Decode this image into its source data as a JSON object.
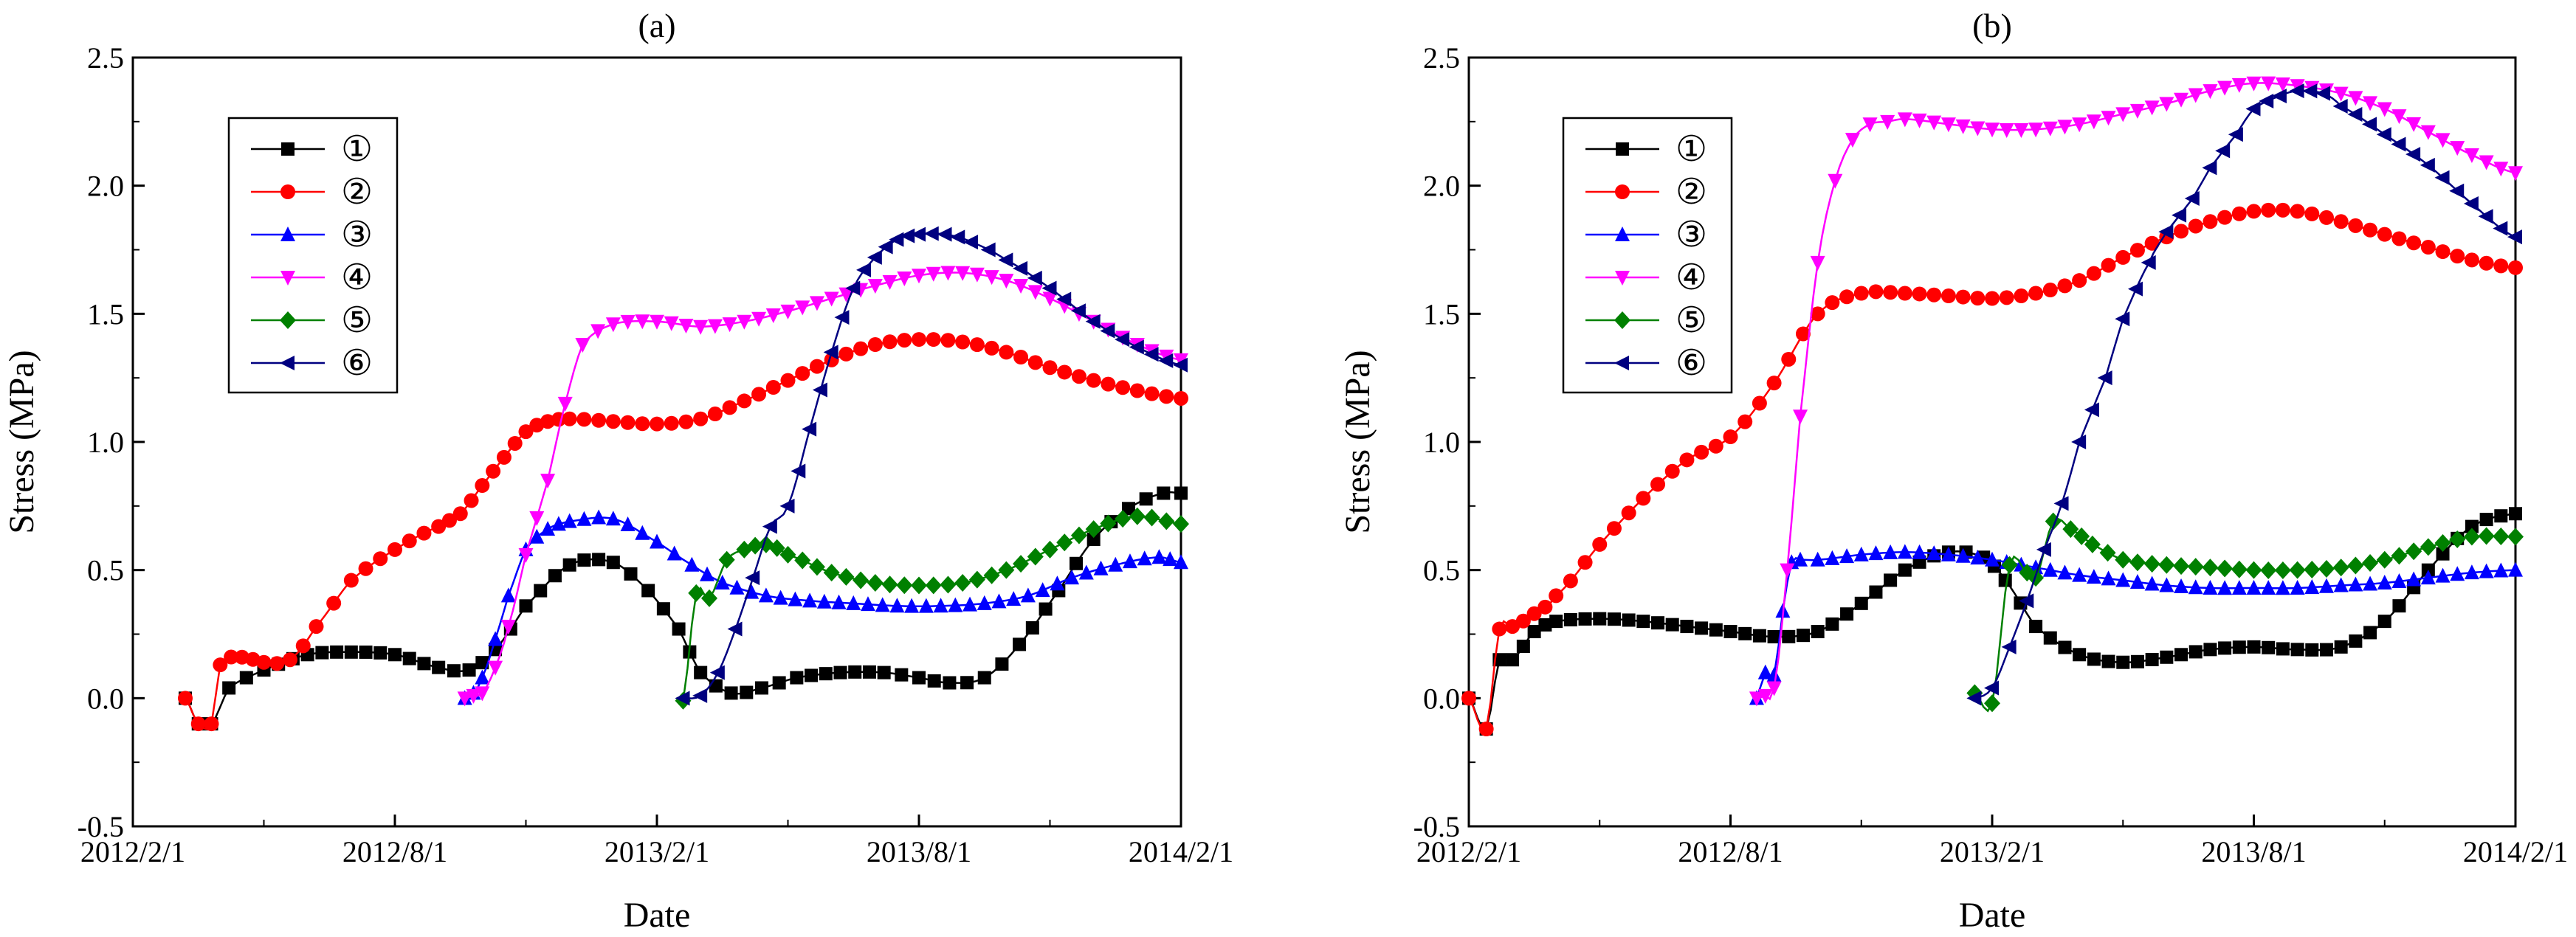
{
  "chart_data": [
    {
      "type": "line",
      "title": "(a)",
      "xlabel": "Date",
      "ylabel": "Stress (MPa)",
      "x_range": [
        0,
        24
      ],
      "x_unit": "months since 2012/2/1",
      "x_ticks": [
        {
          "value": 0,
          "label": "2012/2/1"
        },
        {
          "value": 6,
          "label": "2012/8/1"
        },
        {
          "value": 12,
          "label": "2013/2/1"
        },
        {
          "value": 18,
          "label": "2013/8/1"
        },
        {
          "value": 24,
          "label": "2014/2/1"
        }
      ],
      "ylim": [
        -0.5,
        2.5
      ],
      "y_ticks": [
        {
          "value": -0.5,
          "label": "-0.5"
        },
        {
          "value": 0.0,
          "label": "0.0"
        },
        {
          "value": 0.5,
          "label": "0.5"
        },
        {
          "value": 1.0,
          "label": "1.0"
        },
        {
          "value": 1.5,
          "label": "1.5"
        },
        {
          "value": 2.0,
          "label": "2.0"
        },
        {
          "value": 2.5,
          "label": "2.5"
        }
      ],
      "legend_position": "top-left",
      "series": [
        {
          "name": "①",
          "color": "#000000",
          "marker": "square",
          "x": [
            1.2,
            1.5,
            1.8,
            2.2,
            3.0,
            4.0,
            5.0,
            6.0,
            7.0,
            7.7,
            8.3,
            9.0,
            10.0,
            11.0,
            11.8,
            12.5,
            13.0,
            13.7,
            14.4,
            15.2,
            16.2,
            17.2,
            18.0,
            18.7,
            19.5,
            20.3,
            21.2,
            22.0,
            22.8,
            23.6,
            24.0
          ],
          "values": [
            0.0,
            -0.1,
            -0.1,
            0.04,
            0.11,
            0.17,
            0.18,
            0.17,
            0.12,
            0.11,
            0.19,
            0.36,
            0.52,
            0.53,
            0.42,
            0.27,
            0.1,
            0.02,
            0.04,
            0.08,
            0.1,
            0.1,
            0.08,
            0.06,
            0.08,
            0.21,
            0.42,
            0.62,
            0.74,
            0.8,
            0.8
          ]
        },
        {
          "name": "②",
          "color": "#ff0000",
          "marker": "circle",
          "x": [
            1.2,
            1.5,
            1.8,
            2.0,
            2.5,
            3.0,
            3.6,
            4.2,
            5.0,
            6.0,
            7.0,
            7.5,
            8.0,
            8.5,
            9.0,
            9.5,
            10.0,
            11.0,
            12.0,
            13.0,
            14.0,
            15.0,
            16.0,
            17.0,
            18.0,
            19.0,
            20.0,
            21.0,
            22.0,
            23.0,
            24.0
          ],
          "values": [
            0.0,
            -0.1,
            -0.1,
            0.13,
            0.16,
            0.14,
            0.15,
            0.28,
            0.46,
            0.58,
            0.67,
            0.72,
            0.83,
            0.94,
            1.04,
            1.08,
            1.09,
            1.08,
            1.07,
            1.09,
            1.16,
            1.24,
            1.32,
            1.38,
            1.4,
            1.39,
            1.35,
            1.29,
            1.24,
            1.2,
            1.17
          ]
        },
        {
          "name": "③",
          "color": "#0000ff",
          "marker": "triangle-up",
          "x": [
            7.6,
            7.8,
            8.0,
            8.3,
            8.6,
            9.0,
            9.5,
            10.0,
            11.0,
            12.0,
            12.8,
            13.5,
            14.5,
            15.5,
            16.5,
            17.5,
            18.5,
            19.5,
            20.5,
            21.5,
            22.5,
            23.5,
            24.0
          ],
          "values": [
            0.0,
            0.02,
            0.08,
            0.23,
            0.4,
            0.58,
            0.66,
            0.69,
            0.7,
            0.61,
            0.52,
            0.45,
            0.4,
            0.38,
            0.37,
            0.36,
            0.36,
            0.37,
            0.4,
            0.47,
            0.52,
            0.55,
            0.53
          ]
        },
        {
          "name": "④",
          "color": "#ff00ff",
          "marker": "triangle-down",
          "x": [
            7.6,
            7.8,
            8.0,
            8.3,
            8.6,
            9.0,
            9.5,
            9.9,
            10.3,
            11.0,
            12.0,
            13.0,
            14.0,
            15.0,
            16.0,
            17.0,
            18.0,
            19.0,
            20.0,
            21.0,
            22.0,
            23.0,
            24.0
          ],
          "values": [
            0.0,
            0.01,
            0.02,
            0.12,
            0.28,
            0.56,
            0.85,
            1.15,
            1.38,
            1.46,
            1.47,
            1.45,
            1.47,
            1.51,
            1.56,
            1.61,
            1.65,
            1.66,
            1.63,
            1.56,
            1.47,
            1.38,
            1.32
          ]
        },
        {
          "name": "⑤",
          "color": "#008000",
          "marker": "diamond",
          "x": [
            12.6,
            12.9,
            13.2,
            13.6,
            14.0,
            14.5,
            15.0,
            16.0,
            17.0,
            18.0,
            19.0,
            20.0,
            21.0,
            22.0,
            23.0,
            24.0
          ],
          "values": [
            -0.01,
            0.41,
            0.39,
            0.54,
            0.58,
            0.6,
            0.56,
            0.49,
            0.45,
            0.44,
            0.45,
            0.5,
            0.58,
            0.66,
            0.71,
            0.68
          ]
        },
        {
          "name": "⑥",
          "color": "#000080",
          "marker": "triangle-left",
          "x": [
            12.6,
            13.0,
            13.4,
            13.8,
            14.2,
            14.6,
            15.0,
            15.5,
            16.0,
            16.5,
            17.0,
            17.5,
            18.0,
            18.6,
            19.2,
            20.0,
            21.0,
            22.0,
            23.0,
            24.0
          ],
          "values": [
            0.0,
            0.01,
            0.1,
            0.27,
            0.47,
            0.67,
            0.75,
            1.05,
            1.35,
            1.6,
            1.72,
            1.79,
            1.81,
            1.81,
            1.78,
            1.71,
            1.6,
            1.47,
            1.37,
            1.3
          ]
        }
      ]
    },
    {
      "type": "line",
      "title": "(b)",
      "xlabel": "Date",
      "ylabel": "Stress (MPa)",
      "x_range": [
        0,
        24
      ],
      "x_unit": "months since 2012/2/1",
      "x_ticks": [
        {
          "value": 0,
          "label": "2012/2/1"
        },
        {
          "value": 6,
          "label": "2012/8/1"
        },
        {
          "value": 12,
          "label": "2013/2/1"
        },
        {
          "value": 18,
          "label": "2013/8/1"
        },
        {
          "value": 24,
          "label": "2014/2/1"
        }
      ],
      "ylim": [
        -0.5,
        2.5
      ],
      "y_ticks": [
        {
          "value": -0.5,
          "label": "-0.5"
        },
        {
          "value": 0.0,
          "label": "0.0"
        },
        {
          "value": 0.5,
          "label": "0.5"
        },
        {
          "value": 1.0,
          "label": "1.0"
        },
        {
          "value": 1.5,
          "label": "1.5"
        },
        {
          "value": 2.0,
          "label": "2.0"
        },
        {
          "value": 2.5,
          "label": "2.5"
        }
      ],
      "legend_position": "top-left",
      "series": [
        {
          "name": "①",
          "color": "#000000",
          "marker": "square",
          "x": [
            0.0,
            0.4,
            0.7,
            1.0,
            1.5,
            2.0,
            3.0,
            4.0,
            5.0,
            6.0,
            7.0,
            8.0,
            9.0,
            10.0,
            11.0,
            11.8,
            12.3,
            13.0,
            14.0,
            15.0,
            16.0,
            17.0,
            18.0,
            19.0,
            20.0,
            21.0,
            22.0,
            23.0,
            24.0
          ],
          "values": [
            0.0,
            -0.12,
            0.15,
            0.15,
            0.26,
            0.3,
            0.31,
            0.3,
            0.28,
            0.26,
            0.24,
            0.26,
            0.37,
            0.5,
            0.57,
            0.55,
            0.46,
            0.28,
            0.17,
            0.14,
            0.16,
            0.19,
            0.2,
            0.19,
            0.2,
            0.3,
            0.5,
            0.67,
            0.72
          ]
        },
        {
          "name": "②",
          "color": "#ff0000",
          "marker": "circle",
          "x": [
            0.0,
            0.4,
            0.7,
            1.0,
            1.5,
            2.0,
            3.0,
            4.0,
            5.0,
            6.0,
            7.0,
            8.0,
            9.0,
            10.0,
            11.0,
            12.0,
            13.0,
            14.0,
            15.0,
            16.0,
            17.0,
            18.0,
            19.0,
            20.0,
            21.0,
            22.0,
            23.0,
            24.0
          ],
          "values": [
            0.0,
            -0.12,
            0.27,
            0.28,
            0.33,
            0.4,
            0.6,
            0.78,
            0.93,
            1.02,
            1.23,
            1.5,
            1.58,
            1.58,
            1.57,
            1.56,
            1.58,
            1.63,
            1.72,
            1.8,
            1.86,
            1.9,
            1.9,
            1.86,
            1.81,
            1.76,
            1.71,
            1.68
          ]
        },
        {
          "name": "③",
          "color": "#0000ff",
          "marker": "triangle-up",
          "x": [
            6.6,
            6.8,
            7.0,
            7.2,
            7.4,
            7.6,
            8.0,
            9.0,
            10.0,
            11.0,
            12.0,
            13.0,
            14.0,
            15.0,
            16.0,
            17.0,
            18.0,
            19.0,
            20.0,
            21.0,
            22.0,
            23.0,
            24.0
          ],
          "values": [
            0.0,
            0.1,
            0.09,
            0.34,
            0.53,
            0.54,
            0.54,
            0.56,
            0.57,
            0.56,
            0.54,
            0.51,
            0.48,
            0.46,
            0.44,
            0.43,
            0.43,
            0.43,
            0.44,
            0.45,
            0.47,
            0.49,
            0.5
          ]
        },
        {
          "name": "④",
          "color": "#ff00ff",
          "marker": "triangle-down",
          "x": [
            6.6,
            6.8,
            7.0,
            7.3,
            7.6,
            8.0,
            8.4,
            8.8,
            9.2,
            9.6,
            10.0,
            11.0,
            12.0,
            13.0,
            14.0,
            15.0,
            16.0,
            17.0,
            18.0,
            19.0,
            20.0,
            21.0,
            22.0,
            23.0,
            24.0
          ],
          "values": [
            0.0,
            0.01,
            0.04,
            0.5,
            1.1,
            1.7,
            2.02,
            2.18,
            2.24,
            2.25,
            2.26,
            2.24,
            2.22,
            2.22,
            2.24,
            2.28,
            2.32,
            2.37,
            2.4,
            2.39,
            2.36,
            2.3,
            2.21,
            2.12,
            2.05
          ]
        },
        {
          "name": "⑤",
          "color": "#008000",
          "marker": "diamond",
          "x": [
            11.6,
            12.0,
            12.4,
            12.8,
            13.0,
            13.4,
            13.8,
            14.3,
            15.0,
            16.0,
            17.0,
            18.0,
            19.0,
            20.0,
            21.0,
            22.0,
            23.0,
            24.0
          ],
          "values": [
            0.02,
            -0.02,
            0.52,
            0.49,
            0.47,
            0.69,
            0.66,
            0.6,
            0.54,
            0.52,
            0.51,
            0.5,
            0.5,
            0.51,
            0.54,
            0.59,
            0.63,
            0.63
          ]
        },
        {
          "name": "⑥",
          "color": "#000080",
          "marker": "triangle-left",
          "x": [
            11.6,
            12.0,
            12.4,
            12.8,
            13.2,
            13.6,
            14.0,
            14.6,
            15.0,
            15.6,
            16.0,
            16.6,
            17.0,
            17.6,
            18.0,
            18.6,
            19.0,
            19.6,
            20.0,
            21.0,
            22.0,
            23.0,
            24.0
          ],
          "values": [
            0.0,
            0.04,
            0.2,
            0.38,
            0.58,
            0.76,
            1.0,
            1.25,
            1.48,
            1.7,
            1.82,
            1.95,
            2.07,
            2.2,
            2.3,
            2.35,
            2.37,
            2.36,
            2.31,
            2.2,
            2.08,
            1.93,
            1.8
          ]
        }
      ]
    }
  ]
}
